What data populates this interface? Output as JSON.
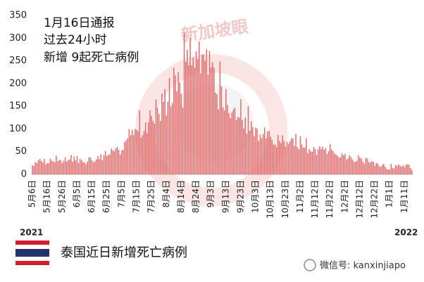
{
  "chart_data": {
    "type": "bar",
    "annotations": [
      "1月16日通报",
      "过去24小时",
      "新增 9起死亡病例"
    ],
    "start_year": "2021",
    "end_year": "2022",
    "caption": "泰国近日新增死亡病例",
    "wechat": "微信号: kanxinjiapo",
    "watermark": "新加坡眼",
    "color": "#e06a6a",
    "ylim": [
      0,
      350
    ],
    "yticks": [
      0,
      50,
      100,
      150,
      200,
      250,
      300,
      350
    ],
    "grid": false,
    "categories": [
      "5月6日",
      null,
      null,
      null,
      null,
      null,
      null,
      null,
      null,
      null,
      "5月16日",
      null,
      null,
      null,
      null,
      null,
      null,
      null,
      null,
      null,
      "5月26日",
      null,
      null,
      null,
      null,
      null,
      null,
      null,
      null,
      null,
      "6月5日",
      null,
      null,
      null,
      null,
      null,
      null,
      null,
      null,
      null,
      "6月15日",
      null,
      null,
      null,
      null,
      null,
      null,
      null,
      null,
      null,
      "6月25日",
      null,
      null,
      null,
      null,
      null,
      null,
      null,
      null,
      null,
      "7月5日",
      null,
      null,
      null,
      null,
      null,
      null,
      null,
      null,
      null,
      "7月15日",
      null,
      null,
      null,
      null,
      null,
      null,
      null,
      null,
      null,
      "7月25日",
      null,
      null,
      null,
      null,
      null,
      null,
      null,
      null,
      null,
      "8月4日",
      null,
      null,
      null,
      null,
      null,
      null,
      null,
      null,
      null,
      "8月14日",
      null,
      null,
      null,
      null,
      null,
      null,
      null,
      null,
      null,
      "8月24日",
      null,
      null,
      null,
      null,
      null,
      null,
      null,
      null,
      null,
      "9月3日",
      null,
      null,
      null,
      null,
      null,
      null,
      null,
      null,
      null,
      "9月13日",
      null,
      null,
      null,
      null,
      null,
      null,
      null,
      null,
      null,
      "9月23日",
      null,
      null,
      null,
      null,
      null,
      null,
      null,
      null,
      null,
      "10月3日",
      null,
      null,
      null,
      null,
      null,
      null,
      null,
      null,
      null,
      "10月13日",
      null,
      null,
      null,
      null,
      null,
      null,
      null,
      null,
      null,
      "10月23日",
      null,
      null,
      null,
      null,
      null,
      null,
      null,
      null,
      null,
      "11月2日",
      null,
      null,
      null,
      null,
      null,
      null,
      null,
      null,
      null,
      "11月12日",
      null,
      null,
      null,
      null,
      null,
      null,
      null,
      null,
      null,
      "11月22日",
      null,
      null,
      null,
      null,
      null,
      null,
      null,
      null,
      null,
      "12月2日",
      null,
      null,
      null,
      null,
      null,
      null,
      null,
      null,
      null,
      "12月12日",
      null,
      null,
      null,
      null,
      null,
      null,
      null,
      null,
      null,
      "12月22日",
      null,
      null,
      null,
      null,
      null,
      null,
      null,
      null,
      null,
      "1月1日",
      null,
      null,
      null,
      null,
      null,
      null,
      null,
      null,
      null,
      "1月11日",
      null,
      null,
      null,
      null,
      null
    ],
    "values": [
      20,
      19,
      27,
      25,
      31,
      34,
      30,
      26,
      34,
      22,
      25,
      25,
      35,
      30,
      29,
      27,
      41,
      29,
      32,
      31,
      25,
      30,
      38,
      28,
      32,
      33,
      43,
      28,
      39,
      31,
      40,
      25,
      34,
      31,
      27,
      26,
      22,
      28,
      38,
      37,
      31,
      26,
      29,
      33,
      40,
      34,
      44,
      31,
      42,
      51,
      41,
      43,
      44,
      57,
      53,
      51,
      57,
      61,
      54,
      44,
      53,
      54,
      72,
      75,
      80,
      100,
      86,
      98,
      87,
      100,
      98,
      95,
      141,
      81,
      87,
      96,
      114,
      91,
      115,
      141,
      129,
      118,
      112,
      165,
      147,
      133,
      118,
      178,
      160,
      188,
      130,
      160,
      212,
      150,
      157,
      235,
      218,
      183,
      225,
      202,
      178,
      147,
      312,
      248,
      275,
      240,
      300,
      240,
      258,
      235,
      271,
      254,
      293,
      222,
      264,
      264,
      250,
      275,
      220,
      272,
      236,
      247,
      235,
      180,
      176,
      143,
      249,
      194,
      148,
      141,
      188,
      153,
      135,
      124,
      136,
      143,
      147,
      120,
      127,
      125,
      166,
      120,
      101,
      125,
      90,
      150,
      96,
      117,
      104,
      84,
      103,
      101,
      74,
      88,
      80,
      89,
      103,
      80,
      95,
      96,
      83,
      76,
      65,
      66,
      60,
      87,
      74,
      69,
      86,
      74,
      61,
      72,
      67,
      73,
      79,
      79,
      63,
      89,
      60,
      55,
      84,
      66,
      59,
      59,
      80,
      47,
      56,
      51,
      50,
      60,
      56,
      43,
      56,
      62,
      56,
      61,
      54,
      58,
      45,
      51,
      67,
      55,
      51,
      46,
      44,
      41,
      37,
      38,
      46,
      42,
      45,
      32,
      35,
      42,
      38,
      33,
      28,
      28,
      30,
      42,
      37,
      35,
      28,
      23,
      37,
      35,
      27,
      26,
      29,
      28,
      19,
      25,
      24,
      18,
      17,
      21,
      23,
      17,
      12,
      11,
      11,
      23,
      14,
      13,
      21,
      18,
      22,
      19,
      17,
      20,
      16,
      22,
      22,
      21,
      14,
      9
    ]
  }
}
